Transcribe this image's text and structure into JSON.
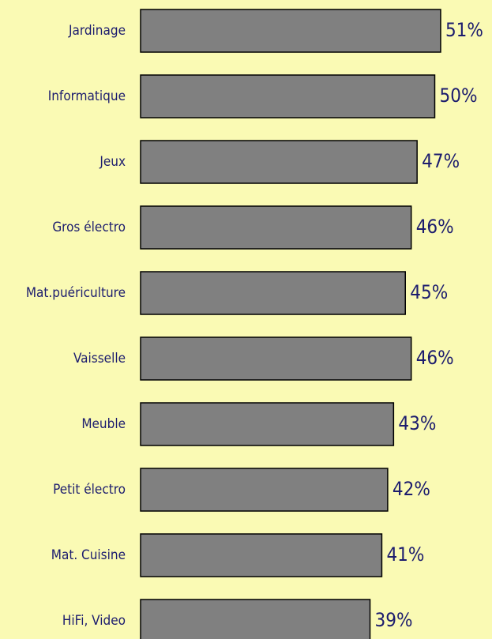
{
  "chart_data": {
    "type": "bar",
    "orientation": "horizontal",
    "categories": [
      "Jardinage",
      "Informatique",
      "Jeux",
      "Gros électro",
      "Mat.puériculture",
      "Vaisselle",
      "Meuble",
      "Petit électro",
      "Mat. Cuisine",
      "HiFi, Video"
    ],
    "values": [
      51,
      50,
      47,
      46,
      45,
      46,
      43,
      42,
      41,
      39
    ],
    "value_labels": [
      "51%",
      "50%",
      "47%",
      "46%",
      "45%",
      "46%",
      "43%",
      "42%",
      "41%",
      "39%"
    ],
    "color": "#808080"
  }
}
